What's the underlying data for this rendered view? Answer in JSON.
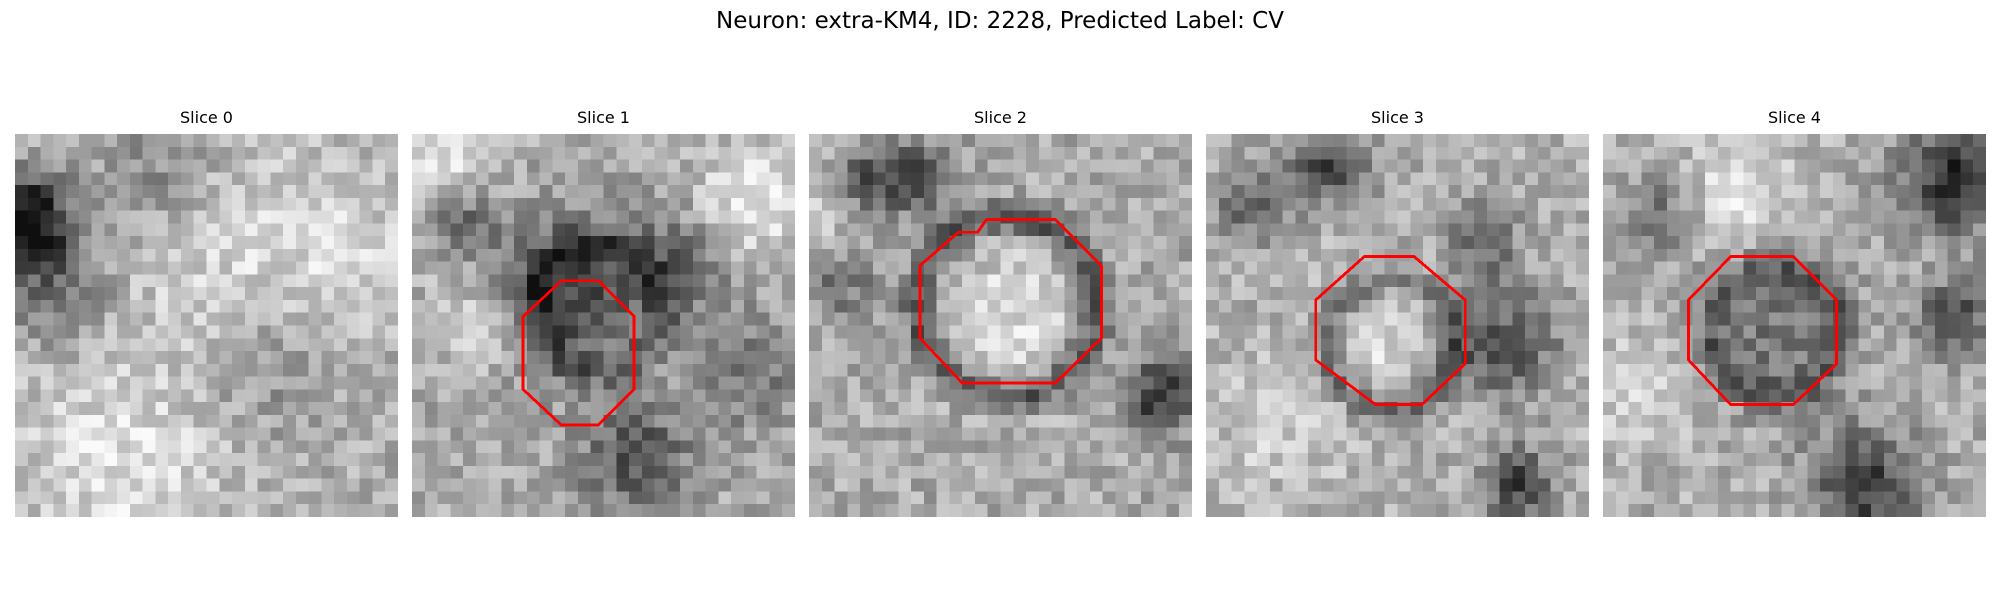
{
  "figure": {
    "title": "Neuron: extra-KM4, ID: 2228, Predicted Label: CV"
  },
  "panels": [
    {
      "title": "Slice 0",
      "outline": "none"
    },
    {
      "title": "Slice 1",
      "outline": "octagon"
    },
    {
      "title": "Slice 2",
      "outline": "octagon"
    },
    {
      "title": "Slice 3",
      "outline": "octagon"
    },
    {
      "title": "Slice 4",
      "outline": "octagon"
    }
  ],
  "colors": {
    "outline": "#ff0000",
    "background": "#ffffff",
    "text": "#000000"
  },
  "image_style": "grayscale pixelated microscopy slices"
}
